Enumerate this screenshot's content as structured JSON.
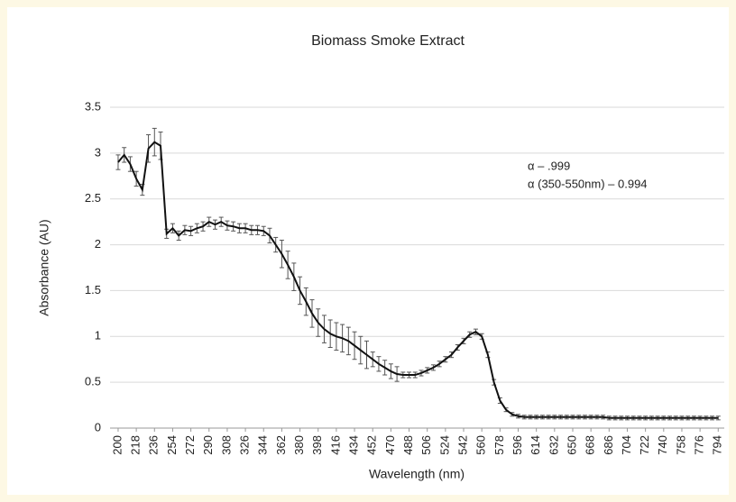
{
  "chart_data": {
    "type": "line",
    "title": "Biomass Smoke Extract",
    "x_label": "Wavelength (nm)",
    "y_label": "Absorbance (AU)",
    "annotations": [
      "α – .999",
      "α (350-550nm) – 0.994"
    ],
    "x": [
      200,
      206,
      212,
      218,
      224,
      230,
      236,
      242,
      248,
      254,
      260,
      266,
      272,
      278,
      284,
      290,
      296,
      302,
      308,
      314,
      320,
      326,
      332,
      338,
      344,
      350,
      356,
      362,
      368,
      374,
      380,
      386,
      392,
      398,
      404,
      410,
      416,
      422,
      428,
      434,
      440,
      446,
      452,
      458,
      464,
      470,
      476,
      482,
      488,
      494,
      500,
      506,
      512,
      518,
      524,
      530,
      536,
      542,
      548,
      554,
      560,
      566,
      572,
      578,
      584,
      590,
      596,
      602,
      608,
      614,
      620,
      626,
      632,
      638,
      644,
      650,
      656,
      662,
      668,
      674,
      680,
      686,
      692,
      698,
      704,
      710,
      716,
      722,
      728,
      734,
      740,
      746,
      752,
      758,
      764,
      770,
      776,
      782,
      788,
      794
    ],
    "series": [
      {
        "name": "Absorbance",
        "color": "#111111",
        "error_color": "#555555",
        "values": [
          2.9,
          2.98,
          2.88,
          2.72,
          2.6,
          3.05,
          3.12,
          3.08,
          2.12,
          2.18,
          2.1,
          2.16,
          2.15,
          2.18,
          2.2,
          2.25,
          2.22,
          2.25,
          2.21,
          2.2,
          2.18,
          2.18,
          2.16,
          2.16,
          2.15,
          2.1,
          2.0,
          1.9,
          1.78,
          1.65,
          1.5,
          1.38,
          1.25,
          1.15,
          1.08,
          1.03,
          1.0,
          0.98,
          0.95,
          0.9,
          0.85,
          0.8,
          0.75,
          0.7,
          0.66,
          0.62,
          0.59,
          0.58,
          0.58,
          0.58,
          0.6,
          0.63,
          0.66,
          0.7,
          0.75,
          0.8,
          0.88,
          0.95,
          1.02,
          1.05,
          1.0,
          0.8,
          0.5,
          0.3,
          0.2,
          0.15,
          0.13,
          0.12,
          0.12,
          0.12,
          0.12,
          0.12,
          0.12,
          0.12,
          0.12,
          0.12,
          0.12,
          0.12,
          0.12,
          0.12,
          0.12,
          0.11,
          0.11,
          0.11,
          0.11,
          0.11,
          0.11,
          0.11,
          0.11,
          0.11,
          0.11,
          0.11,
          0.11,
          0.11,
          0.11,
          0.11,
          0.11,
          0.11,
          0.11,
          0.11
        ],
        "errors": [
          0.08,
          0.08,
          0.08,
          0.08,
          0.06,
          0.15,
          0.15,
          0.15,
          0.05,
          0.05,
          0.05,
          0.05,
          0.05,
          0.05,
          0.05,
          0.05,
          0.05,
          0.05,
          0.05,
          0.05,
          0.05,
          0.05,
          0.05,
          0.05,
          0.05,
          0.08,
          0.08,
          0.15,
          0.15,
          0.15,
          0.15,
          0.15,
          0.15,
          0.15,
          0.15,
          0.15,
          0.15,
          0.15,
          0.15,
          0.15,
          0.15,
          0.15,
          0.08,
          0.08,
          0.08,
          0.08,
          0.08,
          0.03,
          0.03,
          0.03,
          0.03,
          0.03,
          0.03,
          0.03,
          0.03,
          0.03,
          0.03,
          0.03,
          0.03,
          0.03,
          0.03,
          0.03,
          0.03,
          0.03,
          0.02,
          0.02,
          0.02,
          0.02,
          0.02,
          0.02,
          0.02,
          0.02,
          0.02,
          0.02,
          0.02,
          0.02,
          0.02,
          0.02,
          0.02,
          0.02,
          0.02,
          0.02,
          0.02,
          0.02,
          0.02,
          0.02,
          0.02,
          0.02,
          0.02,
          0.02,
          0.02,
          0.02,
          0.02,
          0.02,
          0.02,
          0.02,
          0.02,
          0.02,
          0.02,
          0.02
        ]
      }
    ],
    "xlim": [
      192,
      800
    ],
    "xticks": [
      200,
      218,
      236,
      254,
      272,
      290,
      308,
      326,
      344,
      362,
      380,
      398,
      416,
      434,
      452,
      470,
      488,
      506,
      524,
      542,
      560,
      578,
      596,
      614,
      632,
      650,
      668,
      686,
      704,
      722,
      740,
      758,
      776,
      794
    ],
    "ylim": [
      0,
      3.5
    ],
    "yticks": [
      0,
      0.5,
      1,
      1.5,
      2,
      2.5,
      3,
      3.5
    ],
    "grid": true
  }
}
